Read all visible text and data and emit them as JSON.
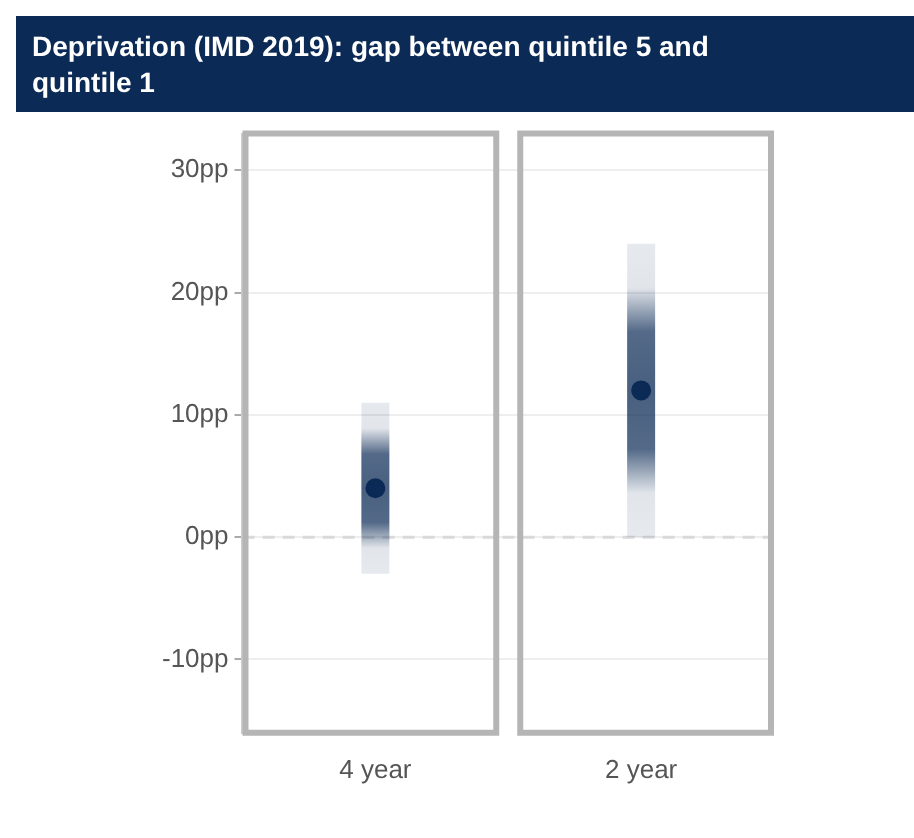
{
  "chart_data": {
    "type": "scatter",
    "title": "Deprivation (IMD 2019): gap between quintile 5 and quintile 1",
    "categories": [
      "4 year",
      "2 year"
    ],
    "values": [
      4,
      12
    ],
    "errors": [
      [
        -3,
        11
      ],
      [
        0,
        24
      ]
    ],
    "color": "#0b2a55",
    "marker": "circle",
    "ylim": [
      -16,
      33
    ],
    "yticks": [
      {
        "value": -10,
        "label": "-10pp"
      },
      {
        "value": 0,
        "label": "0pp"
      },
      {
        "value": 10,
        "label": "10pp"
      },
      {
        "value": 20,
        "label": "20pp"
      },
      {
        "value": 30,
        "label": "30pp"
      }
    ],
    "grid": "y",
    "ref_lines": [
      {
        "axis": "y",
        "value": 0,
        "color": "#d9d9d9",
        "line_style": "dashed"
      }
    ]
  }
}
